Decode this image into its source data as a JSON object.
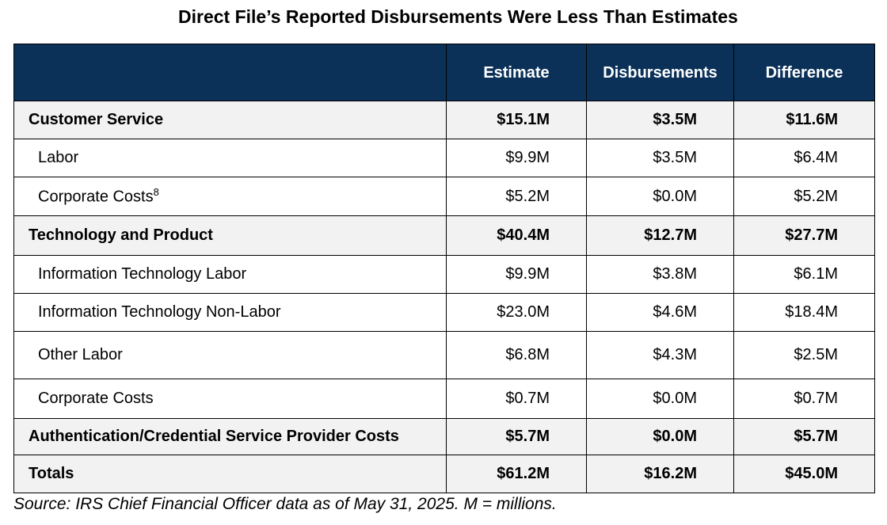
{
  "title": "Direct File’s Reported Disbursements Were Less Than Estimates",
  "table": {
    "header": [
      "Estimate",
      "Disbursements",
      "Difference"
    ],
    "rows": [
      {
        "cells": [
          "Customer Service",
          "$15.1M",
          "$3.5M",
          "$11.6M"
        ]
      },
      {
        "cells": [
          "Labor",
          "$9.9M",
          "$3.5M",
          "$6.4M"
        ]
      },
      {
        "cells": [
          "Corporate Costs",
          "$5.2M",
          "$0.0M",
          "$5.2M"
        ],
        "footnote": "8"
      },
      {
        "cells": [
          "Technology and Product",
          "$40.4M",
          "$12.7M",
          "$27.7M"
        ]
      },
      {
        "cells": [
          "Information Technology Labor",
          "$9.9M",
          "$3.8M",
          "$6.1M"
        ]
      },
      {
        "cells": [
          "Information Technology Non-Labor",
          "$23.0M",
          "$4.6M",
          "$18.4M"
        ]
      },
      {
        "cells": [
          "Other Labor",
          "$6.8M",
          "$4.3M",
          "$2.5M"
        ]
      },
      {
        "cells": [
          "Corporate Costs",
          "$0.7M",
          "$0.0M",
          "$0.7M"
        ]
      },
      {
        "cells": [
          "Authentication/Credential Service Provider Costs",
          "$5.7M",
          "$0.0M",
          "$5.7M"
        ]
      },
      {
        "cells": [
          "Totals",
          "$61.2M",
          "$16.2M",
          "$45.0M"
        ]
      }
    ]
  },
  "source": "Source: IRS Chief Financial Officer data as of May 31, 2025. M = millions."
}
